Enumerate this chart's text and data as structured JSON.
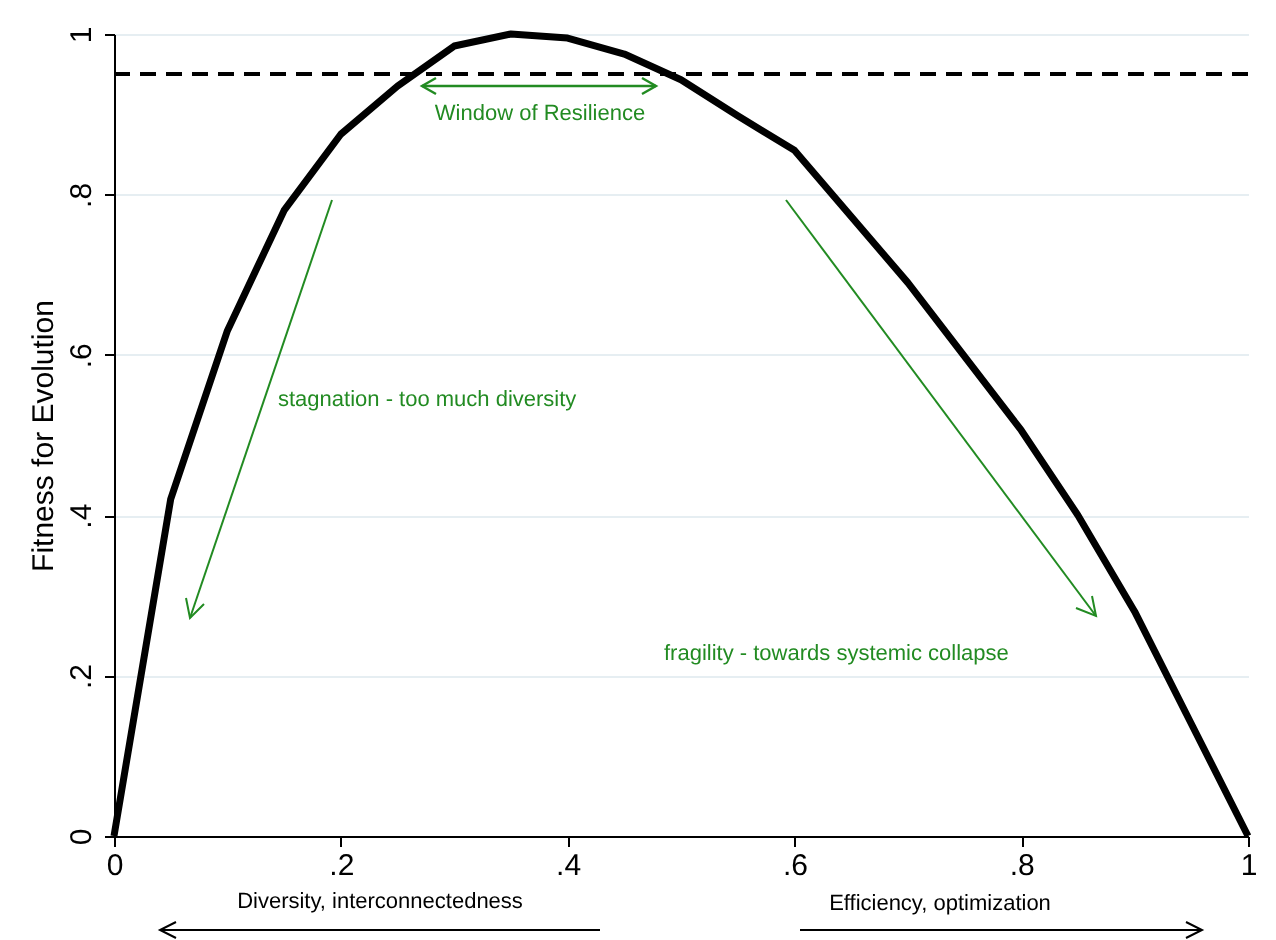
{
  "chart_data": {
    "type": "line",
    "ylabel": "Fitness for Evolution",
    "x": [
      0,
      0.05,
      0.1,
      0.15,
      0.2,
      0.25,
      0.3,
      0.35,
      0.4,
      0.45,
      0.5,
      0.55,
      0.6,
      0.7,
      0.8,
      0.85,
      0.9,
      0.95,
      1
    ],
    "values": [
      0,
      0.42,
      0.63,
      0.78,
      0.875,
      0.935,
      0.985,
      1,
      0.995,
      0.975,
      0.943,
      0.898,
      0.855,
      0.69,
      0.506,
      0.4,
      0.28,
      0.14,
      0
    ],
    "color": "#000000",
    "xlim": [
      0,
      1
    ],
    "ylim": [
      0,
      1
    ],
    "xticks": [
      0,
      {
        "value": 0.2,
        "label": ".2"
      },
      {
        "value": 0.4,
        "label": ".4"
      },
      {
        "value": 0.6,
        "label": ".6"
      },
      {
        "value": 0.8,
        "label": ".8"
      },
      1
    ],
    "yticks": [
      0,
      {
        "value": 0.2,
        "label": ".2"
      },
      {
        "value": 0.4,
        "label": ".4"
      },
      {
        "value": 0.6,
        "label": ".6"
      },
      {
        "value": 0.8,
        "label": ".8"
      },
      1
    ],
    "grid": "y",
    "ref_lines": [
      {
        "axis": "y",
        "value": 0.95,
        "color": "#000000",
        "line_style": "dashed"
      }
    ],
    "annotations": [
      "Window of Resilience",
      "stagnation - too much diversity",
      "fragility - towards systemic collapse",
      "Diversity, interconnectedness",
      "Efficiency, optimization"
    ]
  }
}
